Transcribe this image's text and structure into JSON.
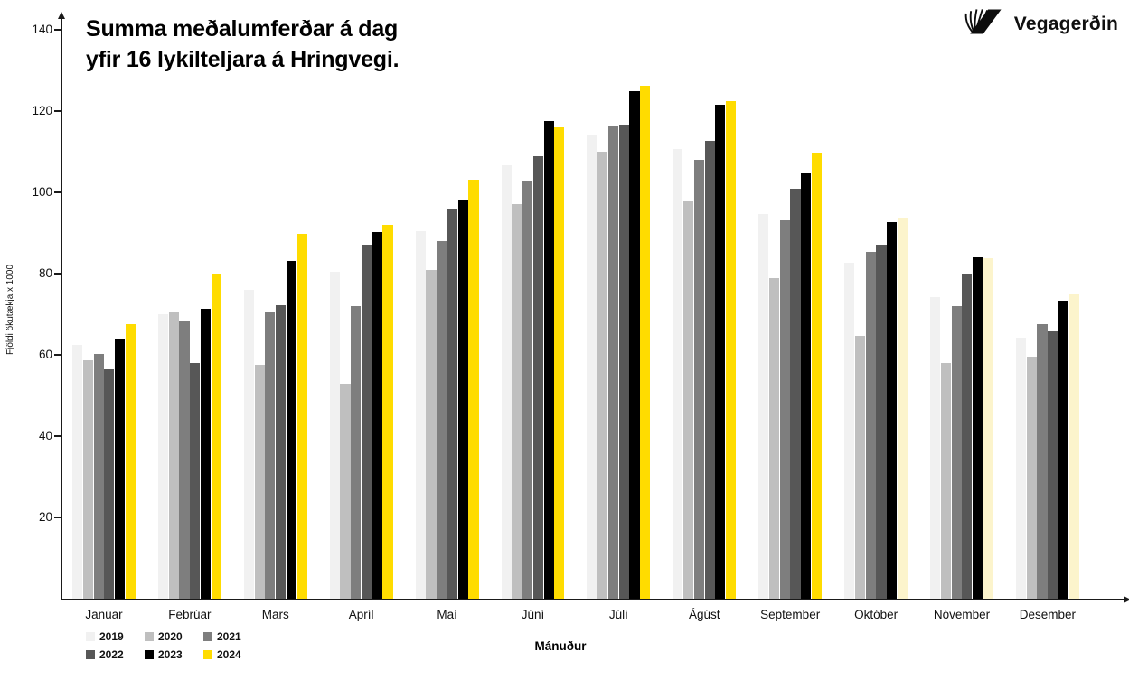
{
  "title": {
    "line1": "Summa meðalumferðar á dag",
    "line2": "yfir 16 lykilteljara á Hringvegi."
  },
  "logo": {
    "text": "Vegagerðin",
    "icon": "vegagerdin-road-stripes-icon"
  },
  "axes": {
    "y_label": "Fjöldi ökutækja x 1000",
    "x_label": "Mánuður",
    "y_ticks": [
      20,
      40,
      60,
      80,
      100,
      120,
      140
    ]
  },
  "colors": {
    "axis": "#1a1a1a",
    "accent_yellow": "#FFDC00",
    "accent_yellow_pale": "#FCF4CC"
  },
  "chart_data": {
    "type": "bar",
    "title": "Summa meðalumferðar á dag yfir 16 lykilteljara á Hringvegi.",
    "xlabel": "Mánuður",
    "ylabel": "Fjöldi ökutækja x 1000",
    "ylim": [
      0,
      140
    ],
    "grid": false,
    "legend_position": "bottom-left",
    "categories": [
      "Janúar",
      "Febrúar",
      "Mars",
      "Apríl",
      "Maí",
      "Júní",
      "Júlí",
      "Ágúst",
      "September",
      "Október",
      "Nóvember",
      "Desember"
    ],
    "series": [
      {
        "name": "2019",
        "color": "#F1F1F1",
        "values": [
          62.5,
          70.0,
          76.0,
          80.4,
          90.4,
          106.6,
          114.0,
          110.7,
          94.7,
          82.6,
          74.2,
          64.3
        ]
      },
      {
        "name": "2020",
        "color": "#BFBFBF",
        "values": [
          58.6,
          70.4,
          57.6,
          52.8,
          81.0,
          97.2,
          110.0,
          97.8,
          78.9,
          64.7,
          58.0,
          59.6
        ]
      },
      {
        "name": "2021",
        "color": "#7E7E7E",
        "values": [
          60.2,
          68.5,
          70.6,
          71.9,
          87.9,
          102.8,
          116.4,
          107.9,
          93.2,
          85.4,
          72.1,
          67.6
        ]
      },
      {
        "name": "2022",
        "color": "#575757",
        "values": [
          56.5,
          58.0,
          72.3,
          87.1,
          96.0,
          109.0,
          116.6,
          112.6,
          100.8,
          87.2,
          80.1,
          65.8
        ]
      },
      {
        "name": "2023",
        "color": "#000000",
        "values": [
          63.9,
          71.4,
          83.1,
          90.3,
          98.1,
          117.5,
          124.9,
          121.6,
          104.7,
          92.7,
          84.0,
          73.4
        ]
      },
      {
        "name": "2024",
        "color": "#FFDC00",
        "pale_color": "#FCF4CC",
        "pale_from_index": 9,
        "values": [
          67.6,
          79.9,
          89.7,
          92.1,
          103.2,
          115.9,
          126.2,
          122.4,
          109.7,
          93.8,
          83.8,
          74.8
        ]
      }
    ]
  }
}
